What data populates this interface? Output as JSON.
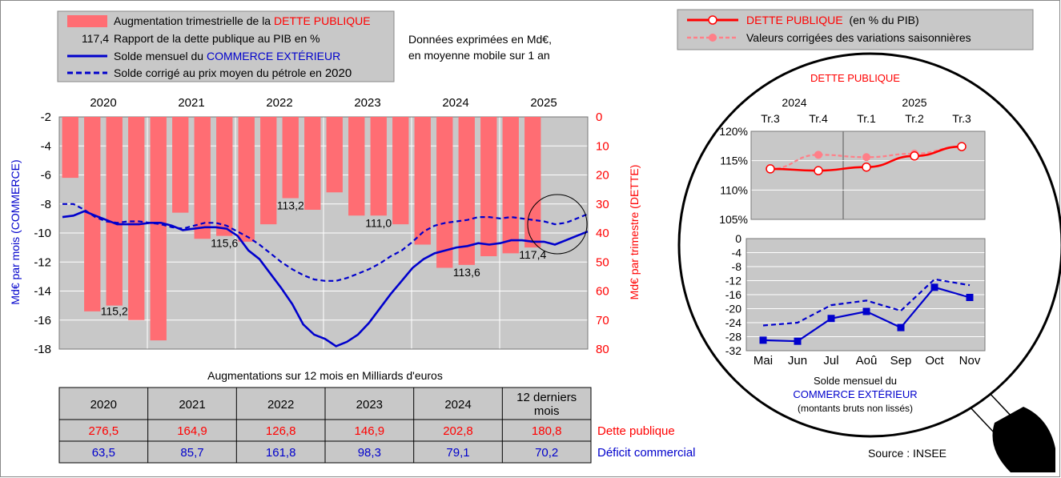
{
  "colors": {
    "debt_bar": "#ff6d73",
    "debt_red": "#ff0000",
    "commerce_blue": "#0000cc",
    "plot_bg": "#c8c8c8",
    "legend_bg": "#c8c8c8"
  },
  "legend": {
    "bar_label_prefix": "Augmentation trimestrielle de la",
    "bar_label_highlight": "DETTE PUBLIQUE",
    "ratio_sample": "117,4",
    "ratio_label": "Rapport de la dette publique au PIB en %",
    "solid_label_prefix": "Solde mensuel du",
    "solid_label_highlight": "COMMERCE EXTÉRIEUR",
    "dashed_label": "Solde corrigé au prix moyen du pétrole en",
    "dashed_year": "2020"
  },
  "note": {
    "line1": "Données exprimées en Md€,",
    "line2": "en moyenne mobile sur 1 an"
  },
  "right_legend": {
    "item1_highlight": "DETTE PUBLIQUE",
    "item1_suffix": "(en % du PIB)",
    "item2": "Valeurs corrigées des variations saisonnières"
  },
  "table": {
    "title": "Augmentations sur 12 mois en Milliards d'euros",
    "headers": [
      "2020",
      "2021",
      "2022",
      "2023",
      "2024",
      "12 derniers mois"
    ],
    "rows": [
      {
        "label": "Dette publique",
        "color": "#ff0000",
        "values": [
          "276,5",
          "164,9",
          "126,8",
          "146,9",
          "202,8",
          "180,8"
        ]
      },
      {
        "label": "Déficit commercial",
        "color": "#0000cc",
        "values": [
          "63,5",
          "85,7",
          "161,8",
          "98,3",
          "79,1",
          "70,2"
        ]
      }
    ]
  },
  "source": "Source : INSEE",
  "chart_data": [
    {
      "type": "bar",
      "ylabel_left": "Md€ par mois (COMMERCE)",
      "ylabel_right": "Md€ par trimestre (DETTE)",
      "left_axis": {
        "min": -18,
        "max": -2,
        "ticks": [
          "-2",
          "-4",
          "-6",
          "-8",
          "-10",
          "-12",
          "-14",
          "-16",
          "-18"
        ]
      },
      "right_axis": {
        "min": 0,
        "max": 80,
        "ticks": [
          "0",
          "10",
          "20",
          "30",
          "40",
          "50",
          "60",
          "70",
          "80"
        ]
      },
      "years": [
        "2020",
        "2021",
        "2022",
        "2023",
        "2024",
        "2025"
      ],
      "debt_quarterly_bars": [
        21,
        67,
        65,
        70,
        77,
        33,
        42,
        41,
        43,
        37,
        28,
        32,
        26,
        34,
        34,
        37,
        44,
        52,
        51,
        48,
        47,
        45
      ],
      "ratio_labels": [
        "115,2",
        "115,6",
        "113,2",
        "111,0",
        "113,6",
        "117,4"
      ],
      "commerce_monthly": [
        -8.9,
        -8.8,
        -8.5,
        -8.8,
        -9.1,
        -9.4,
        -9.4,
        -9.4,
        -9.3,
        -9.3,
        -9.5,
        -9.8,
        -9.7,
        -9.6,
        -9.6,
        -9.7,
        -10.2,
        -11.2,
        -11.8,
        -12.8,
        -13.8,
        -14.9,
        -16.3,
        -17.0,
        -17.3,
        -17.8,
        -17.5,
        -17.0,
        -16.2,
        -15.2,
        -14.2,
        -13.3,
        -12.4,
        -11.8,
        -11.4,
        -11.2,
        -11.0,
        -10.9,
        -10.7,
        -10.8,
        -10.7,
        -10.5,
        -10.5,
        -10.6,
        -10.6,
        -10.8,
        -10.5,
        -10.2,
        -9.9
      ],
      "commerce_corrected": [
        -8.0,
        -8.0,
        -8.4,
        -8.9,
        -9.2,
        -9.3,
        -9.2,
        -9.2,
        -9.3,
        -9.4,
        -9.6,
        -9.7,
        -9.5,
        -9.3,
        -9.3,
        -9.5,
        -9.9,
        -10.3,
        -10.8,
        -11.4,
        -12.0,
        -12.5,
        -12.9,
        -13.2,
        -13.3,
        -13.3,
        -13.1,
        -12.8,
        -12.5,
        -12.1,
        -11.6,
        -11.2,
        -10.6,
        -9.9,
        -9.5,
        -9.3,
        -9.2,
        -9.1,
        -8.9,
        -8.9,
        -9.0,
        -8.9,
        -9.0,
        -9.1,
        -9.2,
        -9.4,
        -9.3,
        -9.0,
        -8.7
      ]
    },
    {
      "type": "line",
      "title": "DETTE PUBLIQUE",
      "years": [
        "2024",
        "2025"
      ],
      "categories": [
        "Tr.3",
        "Tr.4",
        "Tr.1",
        "Tr.2",
        "Tr.3"
      ],
      "y_ticks": [
        "105%",
        "110%",
        "115%",
        "120%"
      ],
      "ylim": [
        105,
        120
      ],
      "series": [
        {
          "name": "DETTE PUBLIQUE (en % du PIB)",
          "values": [
            113.6,
            113.3,
            113.9,
            115.8,
            117.4
          ]
        },
        {
          "name": "Valeurs corrigées des variations saisonnières",
          "values": [
            113.6,
            116.0,
            115.6,
            116.2,
            117.4
          ]
        }
      ]
    },
    {
      "type": "line",
      "categories": [
        "Mai",
        "Jun",
        "Jul",
        "Aoû",
        "Sep",
        "Oct",
        "Nov"
      ],
      "y_ticks": [
        "0",
        "-4",
        "-8",
        "-12",
        "-16",
        "-20",
        "-24",
        "-28",
        "-32"
      ],
      "ylim": [
        -32,
        0
      ],
      "xlabel_line1": "Solde mensuel du",
      "xlabel_line2": "COMMERCE EXTÉRIEUR",
      "xlabel_line3": "(montants bruts non lissés)",
      "series": [
        {
          "name": "Solde mensuel du COMMERCE EXTÉRIEUR",
          "values": [
            -29,
            -29.3,
            -22.8,
            -20.8,
            -25.4,
            -13.9,
            -16.8
          ]
        },
        {
          "name": "Solde corrigé au prix moyen du pétrole en 2020",
          "values": [
            -24.8,
            -24.0,
            -19.0,
            -17.7,
            -20.6,
            -11.6,
            -13.3
          ]
        }
      ]
    }
  ]
}
